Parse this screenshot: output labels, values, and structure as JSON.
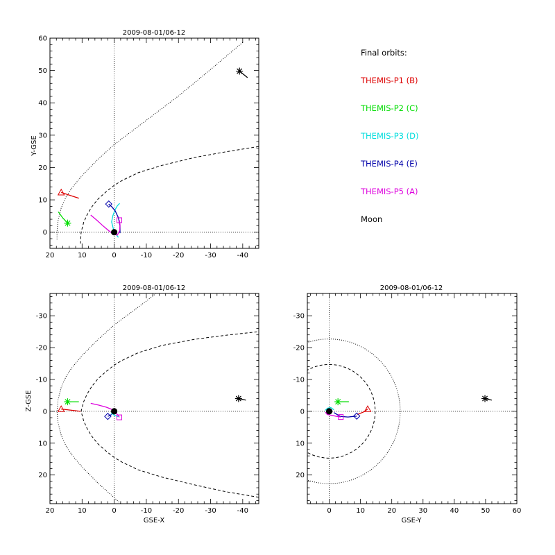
{
  "legend": {
    "title": "Final orbits:",
    "items": [
      {
        "label": "THEMIS-P1 (B)",
        "color": "#dd0000"
      },
      {
        "label": "THEMIS-P2 (C)",
        "color": "#00dd00"
      },
      {
        "label": "THEMIS-P3 (D)",
        "color": "#00dddd"
      },
      {
        "label": "THEMIS-P4 (E)",
        "color": "#0000aa"
      },
      {
        "label": "THEMIS-P5 (A)",
        "color": "#dd00dd"
      },
      {
        "label": "Moon",
        "color": "#000000"
      }
    ]
  },
  "chart_data": [
    {
      "type": "line",
      "title": "2009-08-01/06-12",
      "xlabel": "",
      "ylabel": "Y-GSE",
      "xlim": [
        20,
        -45
      ],
      "ylim": [
        60,
        -5
      ],
      "xticks": [
        20,
        10,
        0,
        -10,
        -20,
        -30,
        -40
      ],
      "yticks": [
        0,
        10,
        20,
        30,
        40,
        50,
        60
      ],
      "dotted_zero_lines": true,
      "magnetopause": [
        [
          -45,
          26.5
        ],
        [
          -35,
          24.9
        ],
        [
          -25,
          23.1
        ],
        [
          -15,
          20.7
        ],
        [
          -7.5,
          18.4
        ],
        [
          -2.5,
          16.0
        ],
        [
          0,
          14.5
        ],
        [
          2.5,
          12.5
        ],
        [
          5,
          10.3
        ],
        [
          7,
          7.8
        ],
        [
          8.5,
          5.3
        ],
        [
          9.5,
          3.0
        ],
        [
          10.3,
          0
        ],
        [
          10.5,
          -3.5
        ]
      ],
      "bow_shock": [
        [
          -40,
          58.7
        ],
        [
          -30,
          50.3
        ],
        [
          -20,
          42.1
        ],
        [
          -10,
          34.6
        ],
        [
          0,
          27.1
        ],
        [
          5,
          22.6
        ],
        [
          10,
          17.5
        ],
        [
          13,
          13.9
        ],
        [
          15,
          10.9
        ],
        [
          16.5,
          7.5
        ],
        [
          17.5,
          3.5
        ],
        [
          17.8,
          0
        ],
        [
          17.8,
          -2.5
        ]
      ],
      "earth": [
        0,
        0
      ],
      "series": [
        {
          "name": "THEMIS-P1 (B)",
          "color": "#dd0000",
          "points": [
            [
              11,
              10.5
            ],
            [
              13.5,
              11.3
            ],
            [
              16.5,
              12.3
            ]
          ],
          "marker": "triangle",
          "marker_at": [
            16.5,
            12.3
          ]
        },
        {
          "name": "THEMIS-P2 (C)",
          "color": "#00dd00",
          "points": [
            [
              17.4,
              6.3
            ],
            [
              16,
              4.4
            ],
            [
              14.5,
              2.8
            ]
          ],
          "marker": "asterisk",
          "marker_at": [
            14.5,
            2.8
          ]
        },
        {
          "name": "THEMIS-P3 (D)",
          "color": "#00dddd",
          "points": [
            [
              -1.3,
              -1.6
            ],
            [
              -0.3,
              -0.3
            ],
            [
              0.3,
              1.2
            ],
            [
              0.8,
              3.2
            ],
            [
              0.4,
              5.2
            ],
            [
              -0.3,
              7
            ],
            [
              -1,
              8.2
            ],
            [
              -1.7,
              8.9
            ]
          ],
          "marker": "none"
        },
        {
          "name": "THEMIS-P4 (E)",
          "color": "#0000aa",
          "points": [
            [
              -1.8,
              -0.3
            ],
            [
              -1.8,
              2
            ],
            [
              -1.3,
              4.5
            ],
            [
              -0.3,
              6.6
            ],
            [
              0.7,
              7.8
            ],
            [
              1.7,
              8.7
            ]
          ],
          "marker": "diamond",
          "marker_at": [
            1.7,
            8.7
          ]
        },
        {
          "name": "THEMIS-P5 (A)",
          "color": "#dd00dd",
          "points": [
            [
              7.3,
              5.3
            ],
            [
              5.3,
              3.6
            ],
            [
              3.3,
              1.8
            ],
            [
              1.5,
              0.3
            ],
            [
              0.2,
              -0.6
            ],
            [
              -1,
              -0.9
            ],
            [
              -1.7,
              0.5
            ],
            [
              -1.8,
              2.3
            ],
            [
              -1.6,
              3.7
            ]
          ],
          "marker": "square",
          "marker_at": [
            -1.6,
            3.7
          ]
        },
        {
          "name": "Moon",
          "color": "#000000",
          "points": [
            [
              -39,
              49.8
            ],
            [
              -41.5,
              47.8
            ]
          ],
          "marker": "asterisk",
          "marker_at": [
            -39,
            49.8
          ]
        }
      ]
    },
    {
      "type": "line",
      "title": "2009-08-01/06-12",
      "xlabel": "GSE-X",
      "ylabel": "Z-GSE",
      "xlim": [
        20,
        -45
      ],
      "ylim": [
        -37,
        29
      ],
      "xticks": [
        20,
        10,
        0,
        -10,
        -20,
        -30,
        -40
      ],
      "yticks": [
        20,
        10,
        0,
        -10,
        -20,
        -30
      ],
      "dotted_zero_lines": true,
      "magnetopause": [
        [
          -45,
          27
        ],
        [
          -35,
          25.3
        ],
        [
          -25,
          23.1
        ],
        [
          -15,
          20.7
        ],
        [
          -7.5,
          18.4
        ],
        [
          -2.5,
          16.0
        ],
        [
          0,
          14.5
        ],
        [
          2.5,
          12.5
        ],
        [
          5,
          10.3
        ],
        [
          7,
          7.8
        ],
        [
          8.5,
          5.3
        ],
        [
          9.5,
          3.0
        ],
        [
          10.3,
          0
        ],
        [
          9.5,
          -3.0
        ],
        [
          8.5,
          -5.3
        ],
        [
          7,
          -7.8
        ],
        [
          5,
          -10.3
        ],
        [
          2.5,
          -12.5
        ],
        [
          0,
          -14.5
        ],
        [
          -2.5,
          -16.0
        ],
        [
          -7.5,
          -18.4
        ],
        [
          -15,
          -20.7
        ],
        [
          -25,
          -22.6
        ],
        [
          -35,
          -23.9
        ],
        [
          -45,
          -25.0
        ]
      ],
      "bow_shock": [
        [
          -2,
          29
        ],
        [
          0,
          27.1
        ],
        [
          5,
          22.6
        ],
        [
          10,
          17.5
        ],
        [
          13,
          13.9
        ],
        [
          15,
          10.9
        ],
        [
          16.5,
          7.5
        ],
        [
          17.5,
          3.5
        ],
        [
          17.8,
          0
        ],
        [
          17.5,
          -3.5
        ],
        [
          16.5,
          -7.5
        ],
        [
          15,
          -10.9
        ],
        [
          13,
          -13.9
        ],
        [
          10,
          -17.5
        ],
        [
          5,
          -22.6
        ],
        [
          0,
          -27.1
        ],
        [
          -10,
          -34.6
        ],
        [
          -13,
          -37
        ]
      ],
      "earth": [
        0,
        0
      ],
      "series": [
        {
          "name": "THEMIS-P1 (B)",
          "color": "#dd0000",
          "points": [
            [
              10.5,
              0
            ],
            [
              13,
              -0.3
            ],
            [
              16.5,
              -0.7
            ]
          ],
          "marker": "triangle",
          "marker_at": [
            16.5,
            -0.7
          ]
        },
        {
          "name": "THEMIS-P2 (C)",
          "color": "#00dd00",
          "points": [
            [
              11,
              -3
            ],
            [
              13,
              -3
            ],
            [
              14.5,
              -3
            ]
          ],
          "marker": "asterisk",
          "marker_at": [
            14.5,
            -3
          ]
        },
        {
          "name": "THEMIS-P3 (D)",
          "color": "#00dddd",
          "points": [
            [
              -1.3,
              1.7
            ],
            [
              0,
              1.2
            ],
            [
              1,
              0.5
            ]
          ],
          "marker": "none"
        },
        {
          "name": "THEMIS-P4 (E)",
          "color": "#0000aa",
          "points": [
            [
              0.8,
              1.0
            ],
            [
              1.6,
              1.4
            ],
            [
              2,
              1.6
            ]
          ],
          "marker": "diamond",
          "marker_at": [
            2,
            1.6
          ]
        },
        {
          "name": "THEMIS-P5 (A)",
          "color": "#dd00dd",
          "points": [
            [
              7.3,
              -2.5
            ],
            [
              5,
              -2
            ],
            [
              2.5,
              -1.3
            ],
            [
              1,
              -0.7
            ],
            [
              -0.5,
              0.4
            ],
            [
              -1.4,
              1.5
            ],
            [
              -1.6,
              1.9
            ]
          ],
          "marker": "square",
          "marker_at": [
            -1.6,
            1.9
          ]
        },
        {
          "name": "Moon",
          "color": "#000000",
          "points": [
            [
              -38.7,
              -4
            ],
            [
              -41,
              -3.5
            ]
          ],
          "marker": "asterisk",
          "marker_at": [
            -38.7,
            -4
          ]
        }
      ]
    },
    {
      "type": "line",
      "title": "2009-08-01/06-12",
      "xlabel": "GSE-Y",
      "ylabel": "",
      "xlim": [
        -7,
        60
      ],
      "ylim": [
        -37,
        29
      ],
      "xticks": [
        0,
        10,
        20,
        30,
        40,
        50,
        60
      ],
      "yticks": [
        20,
        10,
        0,
        -10,
        -20,
        -30
      ],
      "dotted_zero_lines": true,
      "magnetopause_circle_radius": 14.7,
      "bow_shock_circle_radius": 22.7,
      "earth": [
        0,
        0
      ],
      "series": [
        {
          "name": "THEMIS-P1 (B)",
          "color": "#dd0000",
          "points": [
            [
              9,
              1
            ],
            [
              11,
              0.2
            ],
            [
              12.3,
              -0.7
            ]
          ],
          "marker": "triangle",
          "marker_at": [
            12.3,
            -0.7
          ]
        },
        {
          "name": "THEMIS-P2 (C)",
          "color": "#00dd00",
          "points": [
            [
              2.8,
              -3
            ],
            [
              4.5,
              -3
            ],
            [
              6.3,
              -3
            ]
          ],
          "marker": "asterisk",
          "marker_at": [
            2.8,
            -3
          ]
        },
        {
          "name": "THEMIS-P3 (D)",
          "color": "#00dddd",
          "points": [
            [
              -1.3,
              -0.3
            ],
            [
              -0.5,
              -1.0
            ],
            [
              0.5,
              -1.2
            ],
            [
              1.5,
              -0.5
            ]
          ],
          "marker": "none"
        },
        {
          "name": "THEMIS-P4 (E)",
          "color": "#0000aa",
          "points": [
            [
              1.5,
              0.4
            ],
            [
              3.5,
              1.6
            ],
            [
              6,
              1.8
            ],
            [
              8.8,
              1.5
            ]
          ],
          "marker": "diamond",
          "marker_at": [
            8.8,
            1.5
          ]
        },
        {
          "name": "THEMIS-P5 (A)",
          "color": "#dd00dd",
          "points": [
            [
              -1.2,
              0.3
            ],
            [
              -0.6,
              1.0
            ],
            [
              0.5,
              1.2
            ],
            [
              2,
              1.5
            ],
            [
              3.7,
              1.8
            ]
          ],
          "marker": "square",
          "marker_at": [
            3.7,
            1.8
          ]
        },
        {
          "name": "Moon",
          "color": "#000000",
          "points": [
            [
              49.8,
              -4
            ],
            [
              52,
              -3.5
            ]
          ],
          "marker": "asterisk",
          "marker_at": [
            49.8,
            -4
          ]
        }
      ]
    }
  ]
}
